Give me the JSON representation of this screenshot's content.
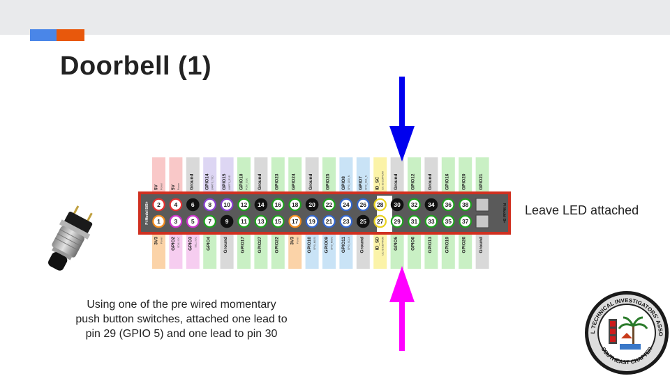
{
  "slide": {
    "title": "Doorbell (1)",
    "note_right": "Leave LED attached",
    "caption_lines": [
      "Using one of the pre wired momentary",
      "push button switches, attached one lead to",
      "pin 29 (GPIO 5) and one lead to pin 30"
    ]
  },
  "colors": {
    "accent_blue": "#4a86e8",
    "accent_orange": "#e8580c",
    "arrow_top": "#0000ee",
    "arrow_bottom": "#ff00ff",
    "board_border": "#d03020"
  },
  "header": {
    "model_left": "Pi Model B/B+",
    "model_right": "Pi Model B+"
  },
  "pins": {
    "even": [
      {
        "pin": "2",
        "label": "5V",
        "sub": "Power",
        "type": "power5"
      },
      {
        "pin": "4",
        "label": "5V",
        "sub": "Power",
        "type": "power5"
      },
      {
        "pin": "6",
        "label": "Ground",
        "sub": "",
        "type": "ground"
      },
      {
        "pin": "8",
        "label": "GPIO14",
        "sub": "UART0_TXD",
        "type": "uart"
      },
      {
        "pin": "10",
        "label": "GPIO15",
        "sub": "UART0_RXD",
        "type": "uart"
      },
      {
        "pin": "12",
        "label": "GPIO18",
        "sub": "PCM_CLK",
        "type": "gpio"
      },
      {
        "pin": "14",
        "label": "Ground",
        "sub": "",
        "type": "ground"
      },
      {
        "pin": "16",
        "label": "GPIO23",
        "sub": "",
        "type": "gpio"
      },
      {
        "pin": "18",
        "label": "GPIO24",
        "sub": "",
        "type": "gpio"
      },
      {
        "pin": "20",
        "label": "Ground",
        "sub": "",
        "type": "ground"
      },
      {
        "pin": "22",
        "label": "GPIO25",
        "sub": "",
        "type": "gpio"
      },
      {
        "pin": "24",
        "label": "GPIO8",
        "sub": "SPI0_CE0_N",
        "type": "spi"
      },
      {
        "pin": "26",
        "label": "GPIO7",
        "sub": "SPI0_CE1_N",
        "type": "spi"
      },
      {
        "pin": "28",
        "label": "ID_SC",
        "sub": "I2C ID EEPROM",
        "type": "id"
      },
      {
        "pin": "30",
        "label": "Ground",
        "sub": "",
        "type": "ground"
      },
      {
        "pin": "32",
        "label": "GPIO12",
        "sub": "",
        "type": "gpio"
      },
      {
        "pin": "34",
        "label": "Ground",
        "sub": "",
        "type": "ground"
      },
      {
        "pin": "36",
        "label": "GPIO16",
        "sub": "",
        "type": "gpio"
      },
      {
        "pin": "38",
        "label": "GPIO20",
        "sub": "",
        "type": "gpio"
      },
      {
        "pin": "40",
        "label": "GPIO21",
        "sub": "",
        "type": "gpio"
      }
    ],
    "odd": [
      {
        "pin": "1",
        "label": "3V3",
        "sub": "Power",
        "type": "power3"
      },
      {
        "pin": "3",
        "label": "GPIO2",
        "sub": "SDA1 I2C",
        "type": "i2c"
      },
      {
        "pin": "5",
        "label": "GPIO3",
        "sub": "SCL1 I2C",
        "type": "i2c"
      },
      {
        "pin": "7",
        "label": "GPIO4",
        "sub": "",
        "type": "gpio"
      },
      {
        "pin": "9",
        "label": "Ground",
        "sub": "",
        "type": "ground"
      },
      {
        "pin": "11",
        "label": "GPIO17",
        "sub": "",
        "type": "gpio"
      },
      {
        "pin": "13",
        "label": "GPIO27",
        "sub": "",
        "type": "gpio"
      },
      {
        "pin": "15",
        "label": "GPIO22",
        "sub": "",
        "type": "gpio"
      },
      {
        "pin": "17",
        "label": "3V3",
        "sub": "Power",
        "type": "power3"
      },
      {
        "pin": "19",
        "label": "GPIO10",
        "sub": "SPI0_MOSI",
        "type": "spi"
      },
      {
        "pin": "21",
        "label": "GPIO09",
        "sub": "SPI0_MISO",
        "type": "spi"
      },
      {
        "pin": "23",
        "label": "GPIO11",
        "sub": "SPI0_SCLK",
        "type": "spi"
      },
      {
        "pin": "25",
        "label": "Ground",
        "sub": "",
        "type": "ground"
      },
      {
        "pin": "27",
        "label": "ID_SD",
        "sub": "I2C ID EEPROM",
        "type": "id"
      },
      {
        "pin": "29",
        "label": "GPIO5",
        "sub": "",
        "type": "gpio"
      },
      {
        "pin": "31",
        "label": "GPIO6",
        "sub": "",
        "type": "gpio"
      },
      {
        "pin": "33",
        "label": "GPIO13",
        "sub": "",
        "type": "gpio"
      },
      {
        "pin": "35",
        "label": "GPIO19",
        "sub": "",
        "type": "gpio"
      },
      {
        "pin": "37",
        "label": "GPIO26",
        "sub": "",
        "type": "gpio"
      },
      {
        "pin": "39",
        "label": "Ground",
        "sub": "",
        "type": "ground"
      }
    ]
  },
  "type_colors": {
    "power5": {
      "bg": "#f9c8c8",
      "ring": "#e53030"
    },
    "power3": {
      "bg": "#fbd3a8",
      "ring": "#f28c1e"
    },
    "ground": {
      "bg": "#d9d9d9",
      "ring": "#111111"
    },
    "gpio": {
      "bg": "#c9f0c4",
      "ring": "#1ea01e"
    },
    "uart": {
      "bg": "#ddd6f3",
      "ring": "#8a3fd1"
    },
    "i2c": {
      "bg": "#f6cdf0",
      "ring": "#cc33cc"
    },
    "spi": {
      "bg": "#c9e3f6",
      "ring": "#3366cc"
    },
    "id": {
      "bg": "#fbf3a8",
      "ring": "#e8d21e"
    }
  },
  "icons": {
    "switch": "push-button-switch-icon",
    "logo": "ntia-southeast-chapter-logo"
  },
  "logo_text": {
    "top": "NATIONAL TECHNICAL INVESTIGATORS' ASSOCIATION",
    "bottom": "SOUTHEAST CHAPTER"
  }
}
